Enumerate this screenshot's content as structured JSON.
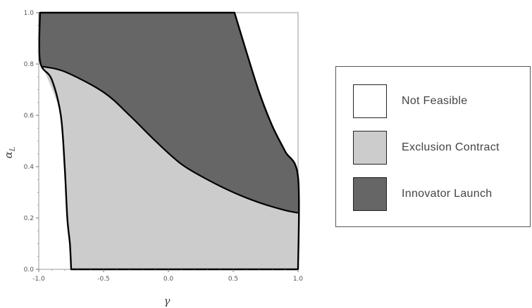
{
  "chart_data": {
    "type": "area",
    "xlabel": "γ",
    "ylabel_symbol": "α",
    "ylabel_subscript": "L",
    "xlim": [
      -1.0,
      1.0
    ],
    "ylim": [
      0.0,
      1.0
    ],
    "xticks": [
      "-1.0",
      "-0.5",
      "0.0",
      "0.5",
      "1.0"
    ],
    "yticks": [
      "0.0",
      "0.2",
      "0.4",
      "0.6",
      "0.8",
      "1.0"
    ],
    "legend_position": "right",
    "series": [
      {
        "name": "Not Feasible",
        "color": "#ffffff"
      },
      {
        "name": "Exclusion Contract",
        "color": "#cccccc"
      },
      {
        "name": "Innovator Launch",
        "color": "#666666"
      }
    ],
    "boundaries": {
      "feasible_left": [
        [
          -0.99,
          1.0
        ],
        [
          -0.99,
          0.81
        ],
        [
          -0.9,
          0.74
        ],
        [
          -0.83,
          0.6
        ],
        [
          -0.8,
          0.4
        ],
        [
          -0.78,
          0.2
        ],
        [
          -0.76,
          0.1
        ],
        [
          -0.75,
          0.0
        ]
      ],
      "feasible_right": [
        [
          0.51,
          1.0
        ],
        [
          0.6,
          0.85
        ],
        [
          0.7,
          0.69
        ],
        [
          0.8,
          0.56
        ],
        [
          0.9,
          0.46
        ],
        [
          1.0,
          0.36
        ],
        [
          1.0,
          0.0
        ]
      ],
      "divider": [
        [
          -0.97,
          0.79
        ],
        [
          -0.8,
          0.77
        ],
        [
          -0.5,
          0.69
        ],
        [
          -0.3,
          0.6
        ],
        [
          -0.1,
          0.5
        ],
        [
          0.1,
          0.41
        ],
        [
          0.3,
          0.35
        ],
        [
          0.5,
          0.3
        ],
        [
          0.7,
          0.26
        ],
        [
          0.9,
          0.23
        ],
        [
          1.0,
          0.22
        ]
      ]
    }
  }
}
